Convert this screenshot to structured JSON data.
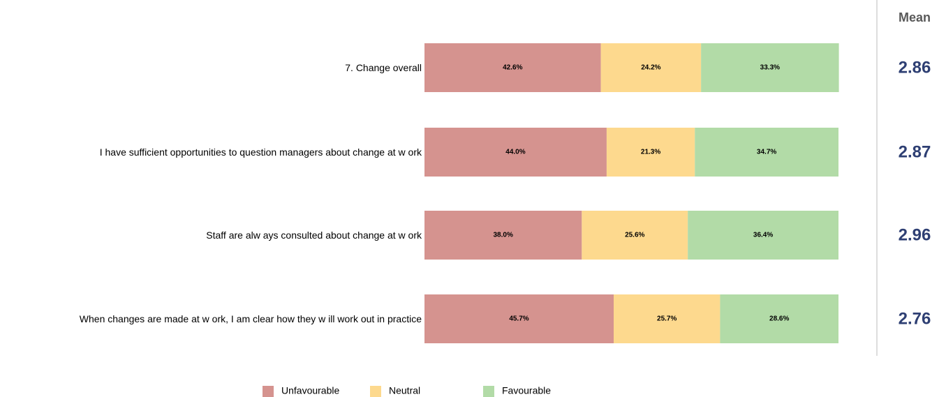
{
  "chart_data": {
    "type": "stacked-bar-horizontal",
    "categories": [
      "7. Change overall",
      "I have sufficient opportunities to question managers about change at w ork",
      "Staff are alw ays consulted about change at w ork",
      "When changes are made at w ork, I am clear how  they w ill work out in practice"
    ],
    "series": [
      {
        "name": "Unfavourable",
        "color": "#d5938f",
        "values": [
          42.6,
          44.0,
          38.0,
          45.7
        ],
        "value_labels": [
          "42.6%",
          "44.0%",
          "38.0%",
          "45.7%"
        ]
      },
      {
        "name": "Neutral",
        "color": "#fdd98e",
        "values": [
          24.2,
          21.3,
          25.6,
          25.7
        ],
        "value_labels": [
          "24.2%",
          "21.3%",
          "25.6%",
          "25.7%"
        ]
      },
      {
        "name": "Favourable",
        "color": "#b2dba7",
        "values": [
          33.3,
          34.7,
          36.4,
          28.6
        ],
        "value_labels": [
          "33.3%",
          "34.7%",
          "36.4%",
          "28.6%"
        ]
      }
    ],
    "xlim": [
      0,
      100
    ],
    "mean": {
      "title": "Mean",
      "values": [
        2.86,
        2.87,
        2.96,
        2.76
      ]
    }
  }
}
